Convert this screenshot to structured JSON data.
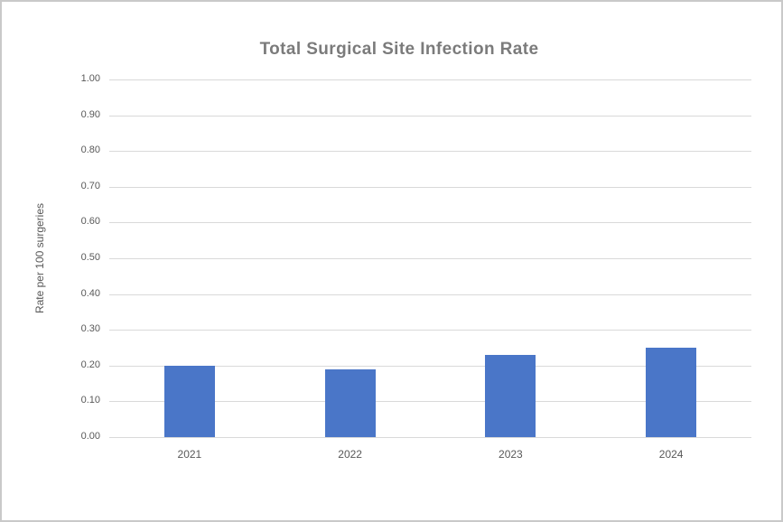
{
  "window": {
    "background": "#ffffff",
    "border_color": "#c9c9c9"
  },
  "chart_data": {
    "type": "bar",
    "title": "Total Surgical Site Infection Rate",
    "xlabel": "",
    "ylabel": "Rate per 100 surgeries",
    "categories": [
      "2021",
      "2022",
      "2023",
      "2024"
    ],
    "values": [
      0.2,
      0.19,
      0.23,
      0.25
    ],
    "ylim": [
      0.0,
      1.0
    ],
    "y_tick_step": 0.1,
    "y_tick_labels": [
      "0.00",
      "0.10",
      "0.20",
      "0.30",
      "0.40",
      "0.50",
      "0.60",
      "0.70",
      "0.80",
      "0.90",
      "1.00"
    ],
    "grid": "horizontal",
    "legend_position": "none",
    "bar_color": "#4a76c8",
    "title_color": "#7b7b7b",
    "tick_label_color": "#595959",
    "gridline_color": "#d9d9d9"
  }
}
